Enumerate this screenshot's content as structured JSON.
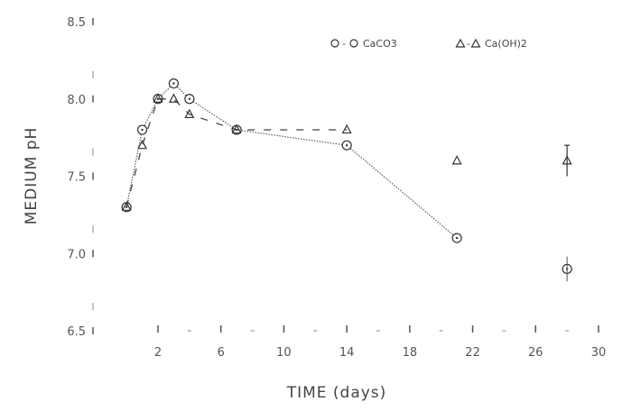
{
  "chart_data": {
    "type": "line",
    "xlabel": "TIME (days)",
    "ylabel": "MEDIUM pH",
    "xlim": [
      -1,
      31
    ],
    "ylim": [
      6.5,
      8.5
    ],
    "x_ticks": [
      2,
      6,
      10,
      14,
      18,
      22,
      26,
      30
    ],
    "x_tick_labels": [
      "2",
      "6",
      "10",
      "14",
      "18",
      "22",
      "26",
      "30"
    ],
    "y_ticks": [
      6.5,
      7.0,
      7.5,
      8.0,
      8.5
    ],
    "y_tick_labels": [
      "6.5",
      "7.0",
      "7.5",
      "8.0",
      "8.5"
    ],
    "legend_position": "top-right",
    "series": [
      {
        "name": "CaCO3",
        "legend_symbol": "O - O",
        "marker": "circle",
        "color": "#333333",
        "x": [
          0,
          1,
          2,
          3,
          4,
          7,
          14,
          21,
          28
        ],
        "y": [
          7.3,
          7.8,
          8.0,
          8.1,
          8.0,
          7.8,
          7.7,
          7.1,
          6.9
        ],
        "connected_through": 8
      },
      {
        "name": "Ca(OH)2",
        "legend_symbol": "Δ - Δ",
        "marker": "triangle",
        "color": "#333333",
        "x": [
          0,
          1,
          2,
          3,
          4,
          7,
          14,
          21,
          28
        ],
        "y": [
          7.3,
          7.7,
          8.0,
          8.0,
          7.9,
          7.8,
          7.8,
          7.6,
          7.6
        ],
        "connected_through": 7
      }
    ]
  }
}
